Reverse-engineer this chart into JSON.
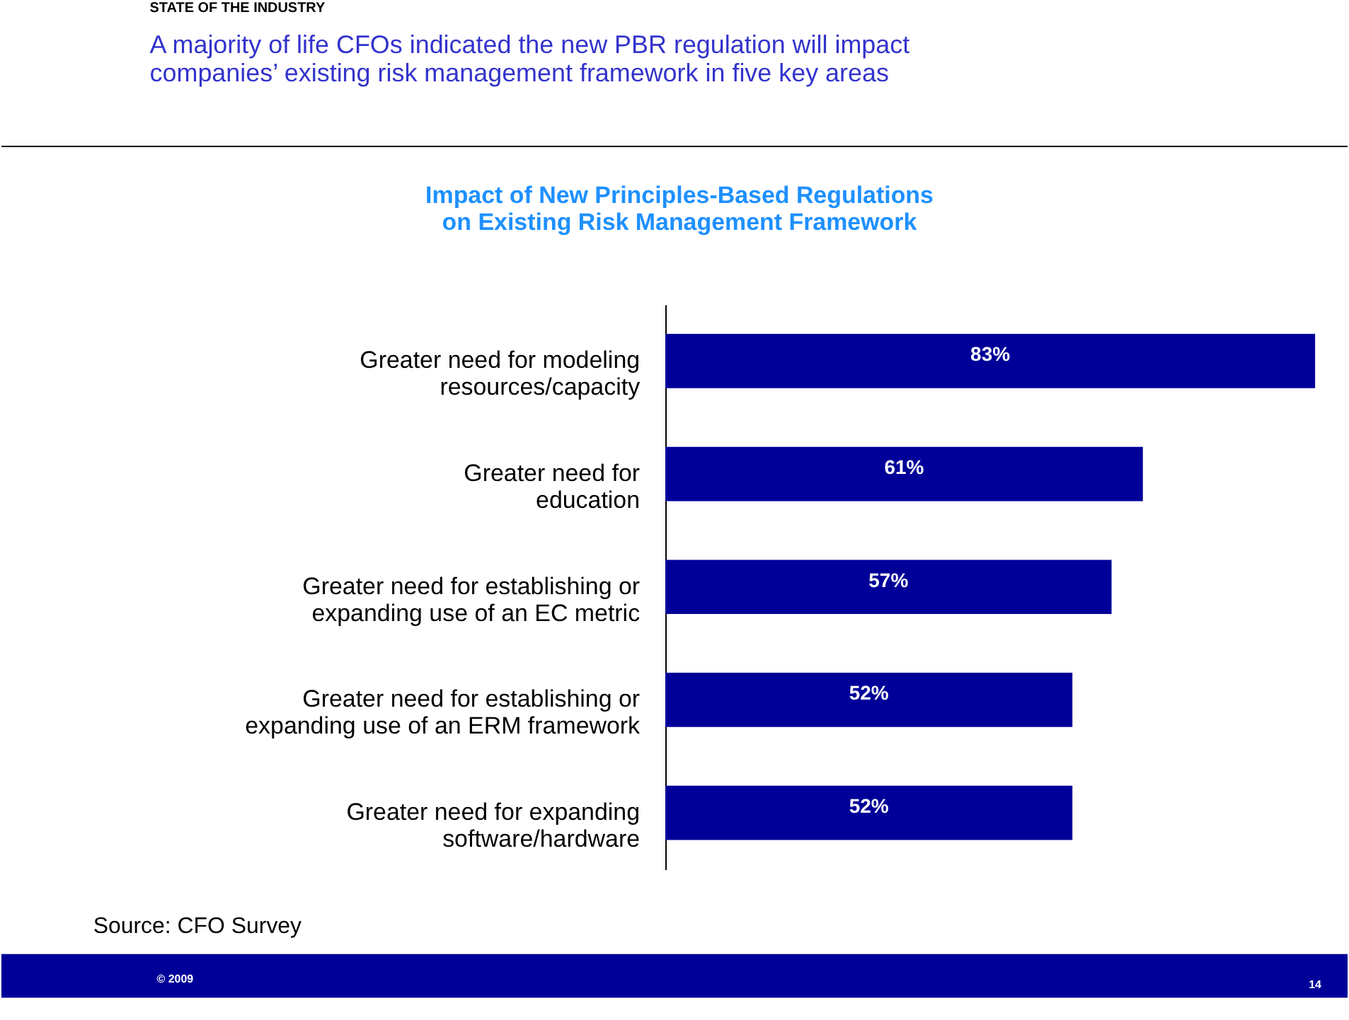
{
  "chart_data": {
    "type": "bar",
    "orientation": "horizontal",
    "title": "Impact of New Principles-Based Regulations\non Existing Risk Management Framework",
    "categories": [
      "Greater need for modeling\nresources/capacity",
      "Greater need for\neducation",
      "Greater need for establishing or\nexpanding use of an EC metric",
      "Greater need for establishing or\nexpanding use of an ERM framework",
      "Greater need for expanding\nsoftware/hardware"
    ],
    "values": [
      83,
      61,
      57,
      52,
      52
    ],
    "value_labels": [
      "83%",
      "61%",
      "57%",
      "52%",
      "52%"
    ],
    "color": "#000099",
    "annotations": [
      "STATE OF THE INDUSTRY",
      "A majority of life CFOs indicated the new PBR regulation will impact\ncompanies’ existing risk management framework in five key areas",
      "Source: CFO Survey",
      "© 2009",
      "14"
    ]
  }
}
